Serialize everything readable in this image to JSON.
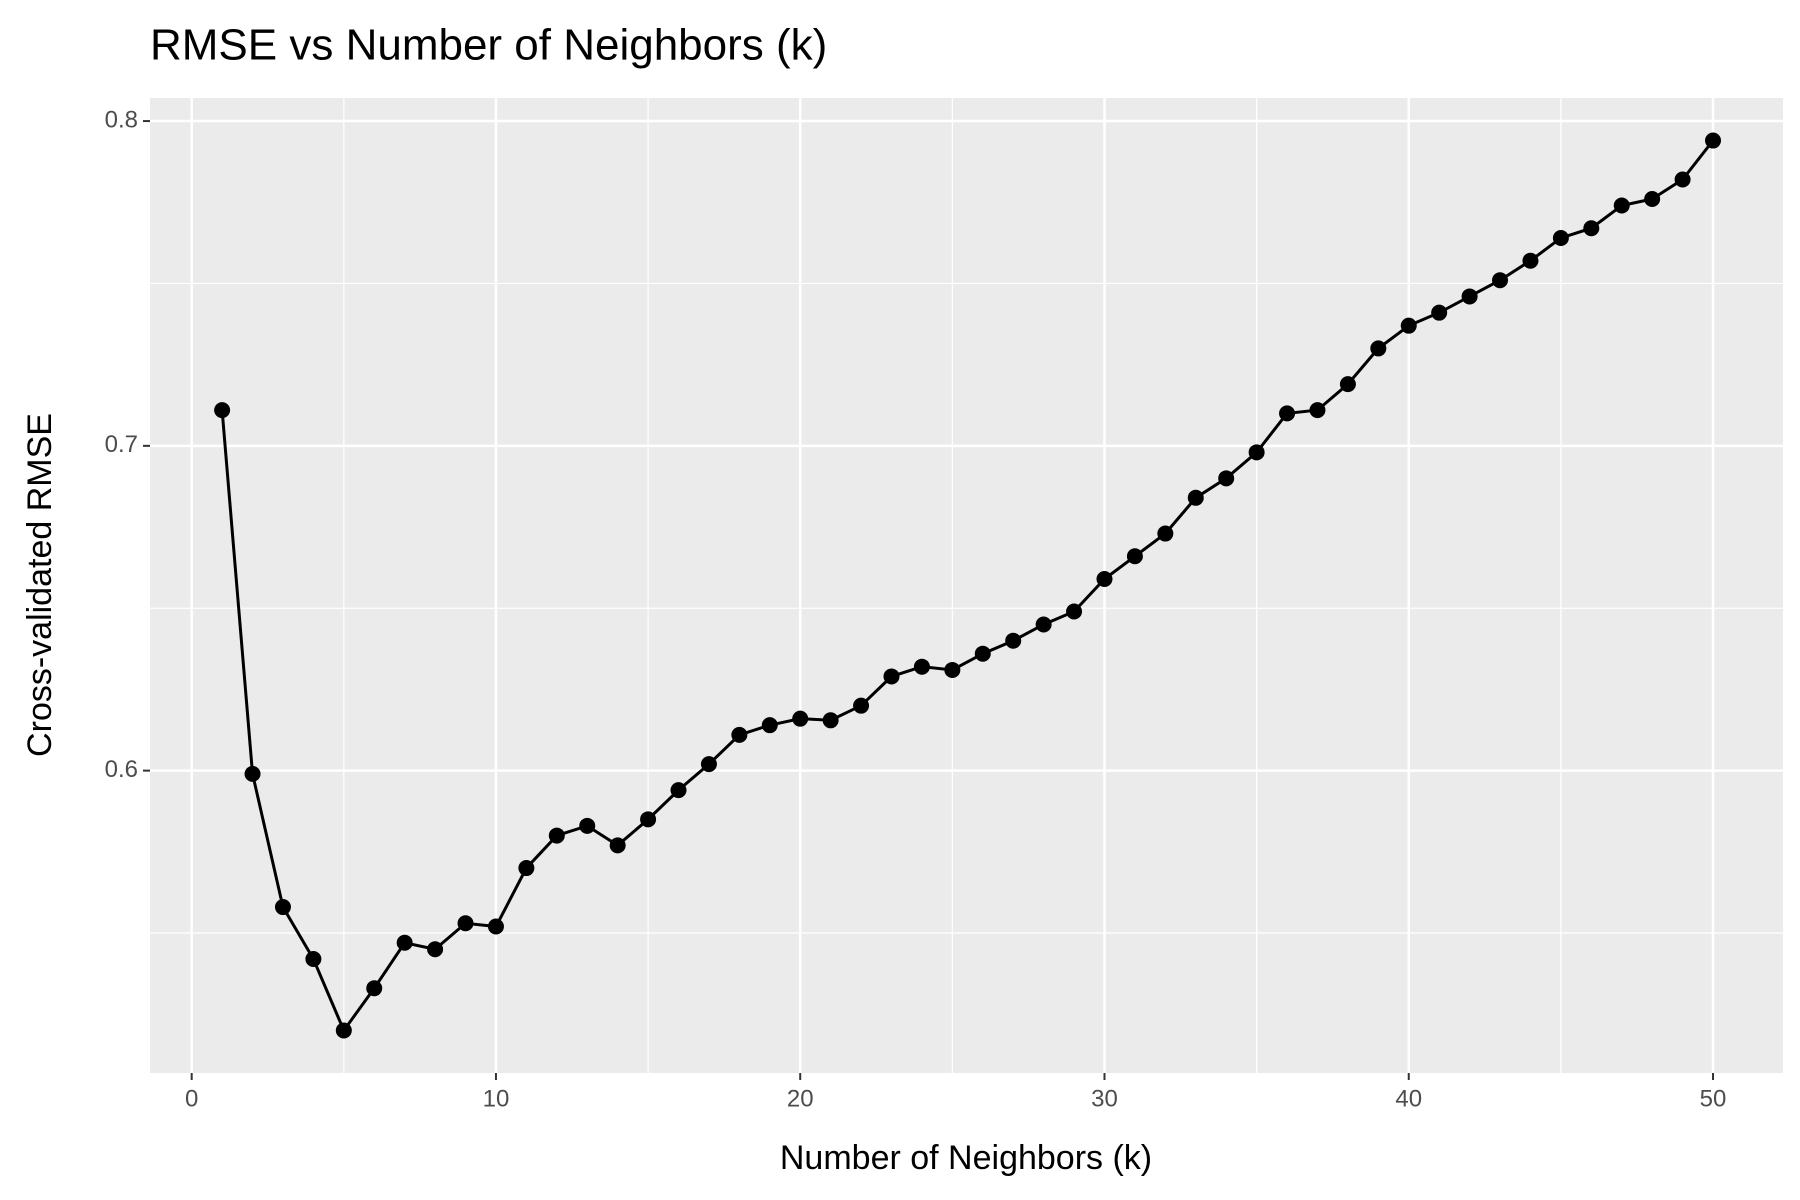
{
  "chart_data": {
    "type": "line",
    "title": "RMSE vs Number of Neighbors (k)",
    "x_label": "Number of Neighbors (k)",
    "y_label": "Cross-validated RMSE",
    "x": [
      1,
      2,
      3,
      4,
      5,
      6,
      7,
      8,
      9,
      10,
      11,
      12,
      13,
      14,
      15,
      16,
      17,
      18,
      19,
      20,
      21,
      22,
      23,
      24,
      25,
      26,
      27,
      28,
      29,
      30,
      31,
      32,
      33,
      34,
      35,
      36,
      37,
      38,
      39,
      40,
      41,
      42,
      43,
      44,
      45,
      46,
      47,
      48,
      49,
      50
    ],
    "series": [
      {
        "color": "#000000",
        "values": [
          0.711,
          0.599,
          0.558,
          0.542,
          0.52,
          0.533,
          0.547,
          0.545,
          0.553,
          0.552,
          0.57,
          0.58,
          0.583,
          0.577,
          0.585,
          0.594,
          0.602,
          0.611,
          0.614,
          0.616,
          0.6155,
          0.62,
          0.629,
          0.632,
          0.631,
          0.636,
          0.64,
          0.645,
          0.649,
          0.659,
          0.666,
          0.673,
          0.684,
          0.69,
          0.698,
          0.71,
          0.711,
          0.719,
          0.73,
          0.737,
          0.741,
          0.746,
          0.751,
          0.757,
          0.764,
          0.767,
          0.774,
          0.776,
          0.782,
          0.794
        ]
      }
    ],
    "xlim": [
      -1.37,
      52.3
    ],
    "xticks": [
      0,
      10,
      20,
      30,
      40,
      50
    ],
    "ylim": [
      0.5069,
      0.8071
    ],
    "yticks": [
      0.6,
      0.7,
      0.8
    ],
    "x_minor_ticks": [
      5,
      15,
      25,
      35,
      45
    ],
    "y_minor_ticks": [
      0.55,
      0.65,
      0.75
    ],
    "grid": true
  }
}
